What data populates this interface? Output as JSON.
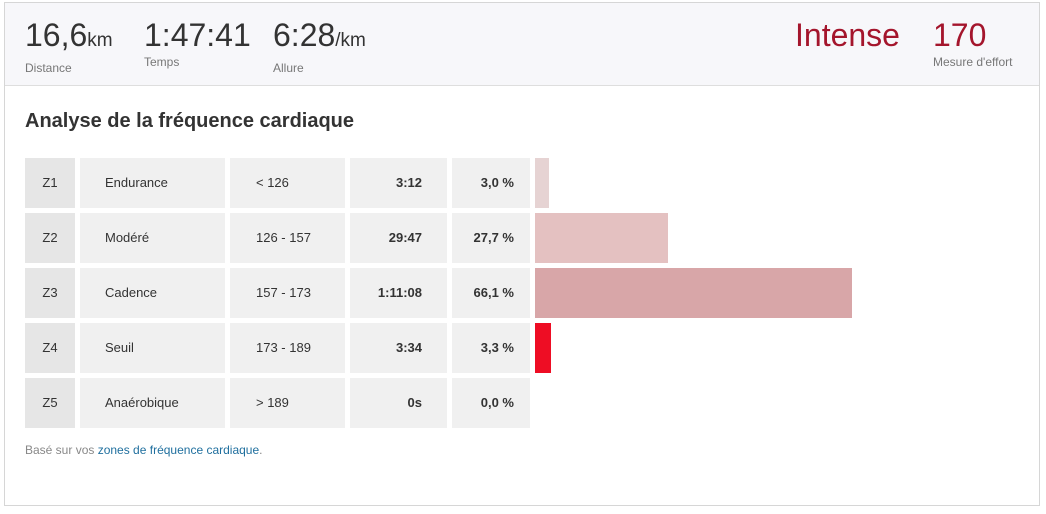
{
  "summary": {
    "distance": {
      "value": "16,6",
      "unit": "km",
      "label": "Distance"
    },
    "time": {
      "value": "1:47:41",
      "label": "Temps"
    },
    "pace": {
      "value": "6:28",
      "unit": "/km",
      "label": "Allure"
    },
    "intensity": {
      "value": "Intense"
    },
    "effort": {
      "value": "170",
      "label": "Mesure d'effort"
    }
  },
  "analysis": {
    "title": "Analyse de la fréquence cardiaque",
    "zones": [
      {
        "id": "Z1",
        "name": "Endurance",
        "range": "< 126",
        "time": "3:12",
        "percent": "3,0 %",
        "share": 3.0,
        "color": "#e6d3d3"
      },
      {
        "id": "Z2",
        "name": "Modéré",
        "range": "126 - 157",
        "time": "29:47",
        "percent": "27,7 %",
        "share": 27.7,
        "color": "#e4c1c1"
      },
      {
        "id": "Z3",
        "name": "Cadence",
        "range": "157 - 173",
        "time": "1:11:08",
        "percent": "66,1 %",
        "share": 66.1,
        "color": "#d8a6a8"
      },
      {
        "id": "Z4",
        "name": "Seuil",
        "range": "173 - 189",
        "time": "3:34",
        "percent": "3,3 %",
        "share": 3.3,
        "color": "#ee0d24"
      },
      {
        "id": "Z5",
        "name": "Anaérobique",
        "range": "> 189",
        "time": "0s",
        "percent": "0,0 %",
        "share": 0.0,
        "color": "#e0e0e0"
      }
    ],
    "footnote_prefix": "Basé sur vos ",
    "footnote_link": "zones de fréquence cardiaque",
    "footnote_suffix": "."
  }
}
